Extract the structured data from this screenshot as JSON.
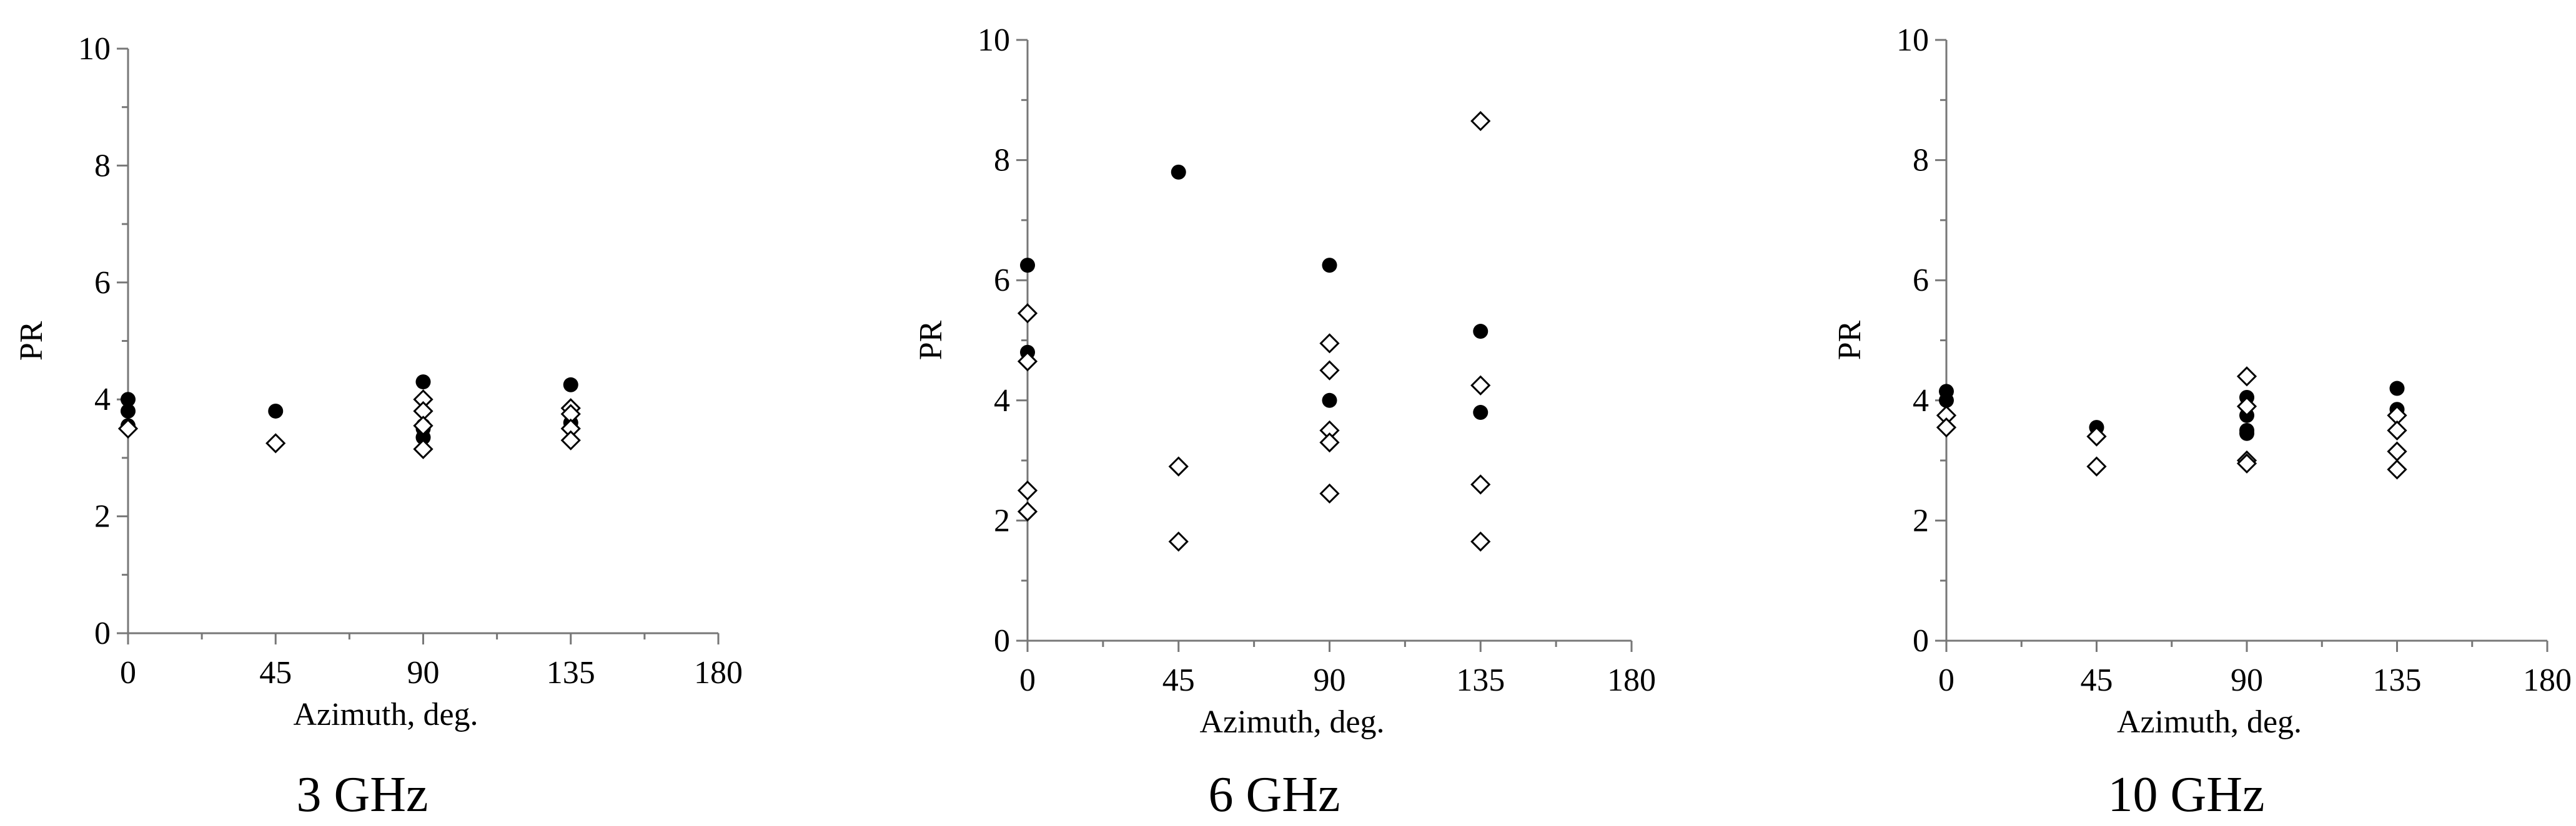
{
  "chart_data": [
    {
      "type": "scatter",
      "caption": "3 GHz",
      "xlabel": "Azimuth, deg.",
      "ylabel": "PR",
      "xlim": [
        0,
        180
      ],
      "ylim": [
        0,
        10
      ],
      "xticks": [
        0,
        45,
        90,
        135,
        180
      ],
      "yticks": [
        0,
        2,
        4,
        6,
        8,
        10
      ],
      "grid": false,
      "series": [
        {
          "marker": "filled-circle",
          "points": [
            [
              0,
              4.0
            ],
            [
              0,
              3.8
            ],
            [
              0,
              3.55
            ],
            [
              45,
              3.8
            ],
            [
              90,
              4.3
            ],
            [
              90,
              3.55
            ],
            [
              90,
              3.5
            ],
            [
              90,
              3.35
            ],
            [
              135,
              4.25
            ],
            [
              135,
              3.6
            ]
          ]
        },
        {
          "marker": "open-diamond",
          "points": [
            [
              0,
              3.5
            ],
            [
              45,
              3.25
            ],
            [
              90,
              4.0
            ],
            [
              90,
              3.8
            ],
            [
              90,
              3.55
            ],
            [
              90,
              3.15
            ],
            [
              135,
              3.85
            ],
            [
              135,
              3.75
            ],
            [
              135,
              3.5
            ],
            [
              135,
              3.3
            ]
          ]
        }
      ]
    },
    {
      "type": "scatter",
      "caption": "6 GHz",
      "xlabel": "Azimuth, deg.",
      "ylabel": "PR",
      "xlim": [
        0,
        180
      ],
      "ylim": [
        0,
        10
      ],
      "xticks": [
        0,
        45,
        90,
        135,
        180
      ],
      "yticks": [
        0,
        2,
        4,
        6,
        8,
        10
      ],
      "grid": false,
      "series": [
        {
          "marker": "filled-circle",
          "points": [
            [
              0,
              6.25
            ],
            [
              0,
              4.8
            ],
            [
              45,
              7.8
            ],
            [
              90,
              6.25
            ],
            [
              90,
              4.0
            ],
            [
              135,
              5.15
            ],
            [
              135,
              3.8
            ]
          ]
        },
        {
          "marker": "open-diamond",
          "points": [
            [
              0,
              5.45
            ],
            [
              0,
              4.65
            ],
            [
              0,
              2.5
            ],
            [
              0,
              2.15
            ],
            [
              45,
              2.9
            ],
            [
              45,
              1.65
            ],
            [
              90,
              4.95
            ],
            [
              90,
              4.5
            ],
            [
              90,
              3.5
            ],
            [
              90,
              3.3
            ],
            [
              90,
              2.45
            ],
            [
              135,
              8.65
            ],
            [
              135,
              4.25
            ],
            [
              135,
              2.6
            ],
            [
              135,
              1.65
            ]
          ]
        }
      ]
    },
    {
      "type": "scatter",
      "caption": "10 GHz",
      "xlabel": "Azimuth, deg.",
      "ylabel": "PR",
      "xlim": [
        0,
        180
      ],
      "ylim": [
        0,
        10
      ],
      "xticks": [
        0,
        45,
        90,
        135,
        180
      ],
      "yticks": [
        0,
        2,
        4,
        6,
        8,
        10
      ],
      "grid": false,
      "series": [
        {
          "marker": "filled-circle",
          "points": [
            [
              0,
              4.15
            ],
            [
              0,
              4.0
            ],
            [
              45,
              3.55
            ],
            [
              90,
              4.05
            ],
            [
              90,
              3.75
            ],
            [
              90,
              3.5
            ],
            [
              90,
              3.45
            ],
            [
              135,
              4.2
            ],
            [
              135,
              3.85
            ]
          ]
        },
        {
          "marker": "open-diamond",
          "points": [
            [
              0,
              3.75
            ],
            [
              0,
              3.55
            ],
            [
              45,
              3.4
            ],
            [
              45,
              2.9
            ],
            [
              90,
              4.4
            ],
            [
              90,
              3.9
            ],
            [
              90,
              3.0
            ],
            [
              90,
              2.95
            ],
            [
              135,
              3.75
            ],
            [
              135,
              3.5
            ],
            [
              135,
              3.15
            ],
            [
              135,
              2.85
            ]
          ]
        }
      ]
    }
  ]
}
